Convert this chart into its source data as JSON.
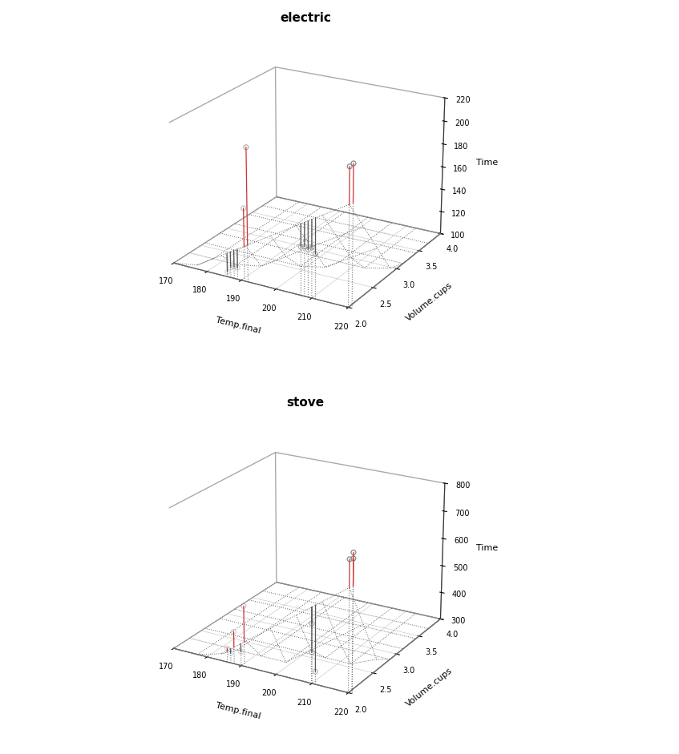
{
  "electric": {
    "title": "electric",
    "temp_final": [
      186,
      187,
      188,
      189,
      191,
      192,
      207,
      208,
      209,
      210,
      211,
      220,
      221
    ],
    "volume_cups": [
      2.0,
      2.0,
      2.0,
      2.0,
      2.0,
      2.0,
      2.0,
      2.0,
      2.0,
      2.0,
      2.0,
      2.0,
      2.0
    ],
    "time": [
      104,
      109,
      110,
      110,
      162,
      213,
      141,
      142,
      140,
      143,
      138,
      215,
      218
    ],
    "xlim": [
      170,
      220
    ],
    "ylim": [
      2.0,
      4.0
    ],
    "zlim": [
      100,
      220
    ],
    "xticks": [
      170,
      180,
      190,
      200,
      210,
      220
    ],
    "yticks": [
      2.0,
      2.5,
      3.0,
      3.5,
      4.0
    ],
    "zticks": [
      100,
      120,
      140,
      160,
      180,
      200,
      220
    ],
    "xlabel": "Temp.final",
    "ylabel": "Volume.cups",
    "zlabel": "Time"
  },
  "stove": {
    "title": "stove",
    "temp_final": [
      186,
      187,
      188,
      190,
      191,
      210,
      210,
      211,
      220,
      221,
      221
    ],
    "volume_cups": [
      2.0,
      2.0,
      2.0,
      2.0,
      2.0,
      2.0,
      2.0,
      2.0,
      2.0,
      2.0,
      2.0
    ],
    "time": [
      350,
      335,
      415,
      350,
      515,
      410,
      510,
      345,
      755,
      760,
      780
    ],
    "xlim": [
      170,
      220
    ],
    "ylim": [
      2.0,
      4.0
    ],
    "zlim": [
      300,
      800
    ],
    "xticks": [
      170,
      180,
      190,
      200,
      210,
      220
    ],
    "yticks": [
      2.0,
      2.5,
      3.0,
      3.5,
      4.0
    ],
    "zticks": [
      300,
      400,
      500,
      600,
      700,
      800
    ],
    "xlabel": "Temp.final",
    "ylabel": "Volume.cups",
    "zlabel": "Time"
  },
  "plane_grid_n": 8,
  "dot_color": "#888888",
  "dot_size": 18,
  "residual_color_pos": "#cc3333",
  "residual_color_neg": "#555555",
  "plane_line_color": "#555555",
  "floor_line_color": "#aaaaaa",
  "pane_edge_color": "#555555",
  "box_line_color": "#333333",
  "background": "white",
  "elev": 22,
  "azim": -60
}
